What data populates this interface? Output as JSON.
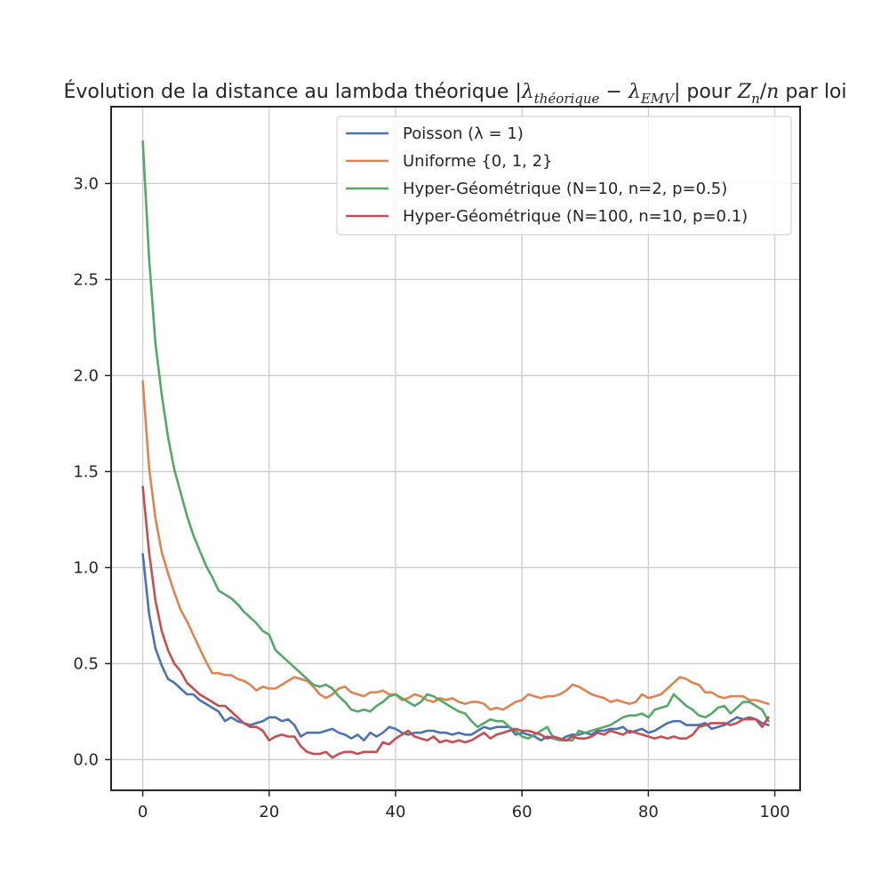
{
  "chart_data": {
    "type": "line",
    "title": {
      "prefix": "Évolution de la distance au lambda théorique |",
      "lambda1": "λ",
      "sub1": "théorique",
      "minus": " − ",
      "lambda2": "λ",
      "sub2": "EMV",
      "mid": "| pour ",
      "z": "Z",
      "zsub": "n",
      "slash": "/",
      "n": "n",
      "suffix": " par loi"
    },
    "xlabel": "",
    "ylabel": "",
    "xlim": [
      -5,
      104
    ],
    "ylim": [
      -0.16,
      3.4
    ],
    "xticks": [
      0,
      20,
      40,
      60,
      80,
      100
    ],
    "yticks": [
      0.0,
      0.5,
      1.0,
      1.5,
      2.0,
      2.5,
      3.0
    ],
    "ytick_labels": [
      "0.0",
      "0.5",
      "1.0",
      "1.5",
      "2.0",
      "2.5",
      "3.0"
    ],
    "xtick_labels": [
      "0",
      "20",
      "40",
      "60",
      "80",
      "100"
    ],
    "grid": true,
    "legend_position": "top-right",
    "x": [
      0,
      1,
      2,
      3,
      4,
      5,
      6,
      7,
      8,
      9,
      10,
      11,
      12,
      13,
      14,
      15,
      16,
      17,
      18,
      19,
      20,
      21,
      22,
      23,
      24,
      25,
      26,
      27,
      28,
      29,
      30,
      31,
      32,
      33,
      34,
      35,
      36,
      37,
      38,
      39,
      40,
      41,
      42,
      43,
      44,
      45,
      46,
      47,
      48,
      49,
      50,
      51,
      52,
      53,
      54,
      55,
      56,
      57,
      58,
      59,
      60,
      61,
      62,
      63,
      64,
      65,
      66,
      67,
      68,
      69,
      70,
      71,
      72,
      73,
      74,
      75,
      76,
      77,
      78,
      79,
      80,
      81,
      82,
      83,
      84,
      85,
      86,
      87,
      88,
      89,
      90,
      91,
      92,
      93,
      94,
      95,
      96,
      97,
      98,
      99
    ],
    "series": [
      {
        "name": "Poisson (λ = 1)",
        "color": "#4c72b0",
        "values": [
          1.07,
          0.76,
          0.58,
          0.49,
          0.42,
          0.4,
          0.37,
          0.34,
          0.34,
          0.31,
          0.29,
          0.27,
          0.25,
          0.2,
          0.22,
          0.2,
          0.19,
          0.18,
          0.19,
          0.2,
          0.22,
          0.22,
          0.2,
          0.21,
          0.18,
          0.12,
          0.14,
          0.14,
          0.14,
          0.15,
          0.16,
          0.14,
          0.13,
          0.11,
          0.13,
          0.1,
          0.14,
          0.12,
          0.14,
          0.17,
          0.16,
          0.14,
          0.13,
          0.14,
          0.14,
          0.15,
          0.15,
          0.14,
          0.14,
          0.13,
          0.14,
          0.13,
          0.13,
          0.15,
          0.17,
          0.16,
          0.17,
          0.17,
          0.17,
          0.13,
          0.14,
          0.13,
          0.12,
          0.1,
          0.12,
          0.11,
          0.1,
          0.12,
          0.13,
          0.13,
          0.14,
          0.13,
          0.15,
          0.15,
          0.16,
          0.16,
          0.17,
          0.14,
          0.15,
          0.16,
          0.14,
          0.15,
          0.17,
          0.19,
          0.2,
          0.2,
          0.18,
          0.18,
          0.18,
          0.19,
          0.16,
          0.17,
          0.18,
          0.2,
          0.22,
          0.21,
          0.22,
          0.21,
          0.19,
          0.18
        ]
      },
      {
        "name": "Uniforme {0, 1, 2}",
        "color": "#dd8452",
        "values": [
          1.97,
          1.52,
          1.26,
          1.08,
          0.97,
          0.87,
          0.78,
          0.72,
          0.65,
          0.58,
          0.51,
          0.45,
          0.45,
          0.44,
          0.44,
          0.42,
          0.41,
          0.39,
          0.36,
          0.38,
          0.37,
          0.37,
          0.39,
          0.41,
          0.43,
          0.42,
          0.41,
          0.38,
          0.34,
          0.32,
          0.34,
          0.37,
          0.38,
          0.35,
          0.34,
          0.33,
          0.35,
          0.35,
          0.36,
          0.34,
          0.34,
          0.31,
          0.32,
          0.34,
          0.33,
          0.31,
          0.3,
          0.32,
          0.31,
          0.32,
          0.3,
          0.29,
          0.3,
          0.3,
          0.29,
          0.26,
          0.27,
          0.26,
          0.28,
          0.3,
          0.31,
          0.34,
          0.33,
          0.32,
          0.33,
          0.33,
          0.34,
          0.36,
          0.39,
          0.38,
          0.36,
          0.34,
          0.33,
          0.32,
          0.3,
          0.31,
          0.3,
          0.29,
          0.3,
          0.34,
          0.32,
          0.33,
          0.34,
          0.37,
          0.4,
          0.43,
          0.42,
          0.4,
          0.39,
          0.35,
          0.35,
          0.33,
          0.32,
          0.33,
          0.33,
          0.33,
          0.31,
          0.31,
          0.3,
          0.29
        ]
      },
      {
        "name": "Hyper-Géométrique (N=10, n=2, p=0.5)",
        "color": "#55a868",
        "values": [
          3.22,
          2.61,
          2.17,
          1.9,
          1.68,
          1.51,
          1.39,
          1.27,
          1.17,
          1.09,
          1.01,
          0.95,
          0.88,
          0.86,
          0.84,
          0.81,
          0.77,
          0.74,
          0.71,
          0.67,
          0.65,
          0.57,
          0.54,
          0.51,
          0.48,
          0.45,
          0.42,
          0.39,
          0.38,
          0.39,
          0.37,
          0.33,
          0.3,
          0.26,
          0.25,
          0.26,
          0.25,
          0.28,
          0.3,
          0.33,
          0.34,
          0.32,
          0.3,
          0.28,
          0.3,
          0.34,
          0.33,
          0.31,
          0.29,
          0.27,
          0.25,
          0.24,
          0.2,
          0.17,
          0.19,
          0.21,
          0.2,
          0.2,
          0.17,
          0.15,
          0.12,
          0.11,
          0.13,
          0.15,
          0.17,
          0.11,
          0.1,
          0.1,
          0.1,
          0.15,
          0.14,
          0.15,
          0.16,
          0.17,
          0.18,
          0.2,
          0.22,
          0.23,
          0.23,
          0.24,
          0.22,
          0.26,
          0.27,
          0.28,
          0.34,
          0.31,
          0.28,
          0.26,
          0.23,
          0.22,
          0.24,
          0.27,
          0.28,
          0.24,
          0.27,
          0.3,
          0.3,
          0.28,
          0.26,
          0.2
        ]
      },
      {
        "name": "Hyper-Géométrique (N=100, n=10, p=0.1)",
        "color": "#c44e52",
        "values": [
          1.42,
          1.08,
          0.83,
          0.67,
          0.57,
          0.5,
          0.46,
          0.4,
          0.37,
          0.34,
          0.32,
          0.3,
          0.28,
          0.28,
          0.25,
          0.22,
          0.19,
          0.17,
          0.17,
          0.15,
          0.1,
          0.12,
          0.13,
          0.12,
          0.12,
          0.07,
          0.04,
          0.03,
          0.03,
          0.04,
          0.01,
          0.03,
          0.04,
          0.04,
          0.03,
          0.04,
          0.04,
          0.04,
          0.09,
          0.08,
          0.11,
          0.13,
          0.15,
          0.12,
          0.11,
          0.1,
          0.12,
          0.09,
          0.1,
          0.09,
          0.1,
          0.09,
          0.1,
          0.12,
          0.14,
          0.11,
          0.13,
          0.14,
          0.15,
          0.16,
          0.15,
          0.15,
          0.14,
          0.13,
          0.11,
          0.12,
          0.11,
          0.1,
          0.12,
          0.11,
          0.11,
          0.12,
          0.14,
          0.13,
          0.15,
          0.14,
          0.13,
          0.15,
          0.14,
          0.13,
          0.12,
          0.11,
          0.12,
          0.11,
          0.12,
          0.11,
          0.11,
          0.13,
          0.17,
          0.18,
          0.19,
          0.19,
          0.19,
          0.18,
          0.19,
          0.21,
          0.21,
          0.21,
          0.17,
          0.22
        ]
      }
    ]
  }
}
